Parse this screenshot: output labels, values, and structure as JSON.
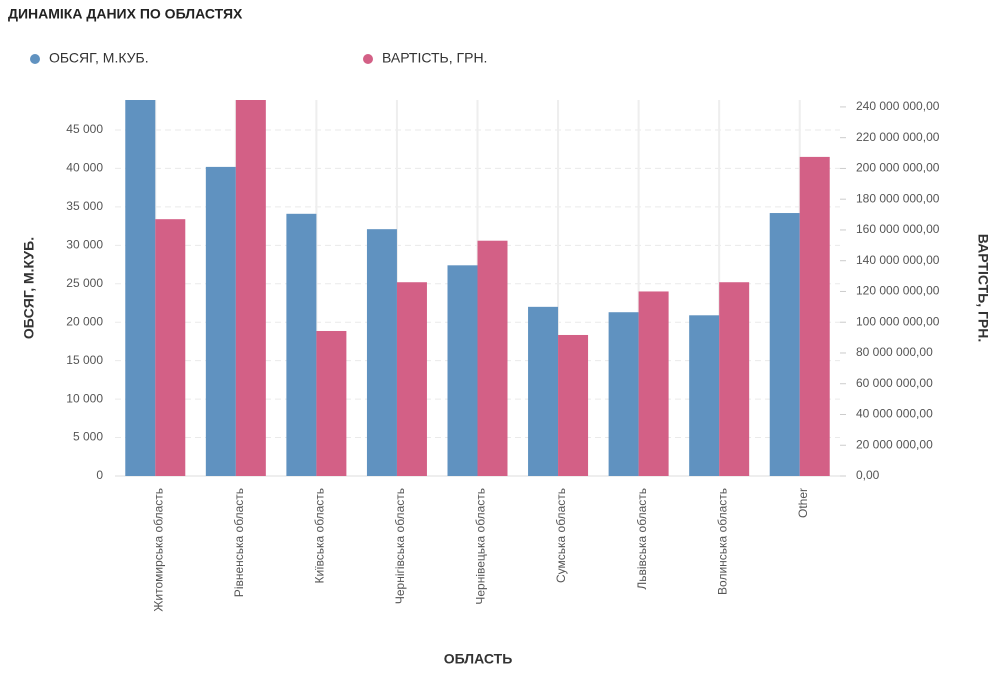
{
  "chart_data": {
    "type": "bar",
    "title": "ДИНАМІКА ДАНИХ ПО ОБЛАСТЯХ",
    "x_label": "ОБЛАСТЬ",
    "y_label": "ОБСЯГ, М.КУБ.",
    "y2_label": "ВАРТІСТЬ, ГРН.",
    "categories": [
      "Житомирська область",
      "Рівненська область",
      "Київська область",
      "Чернігівська область",
      "Чернівецька область",
      "Сумська область",
      "Львівська область",
      "Волинська область",
      "Other"
    ],
    "series": [
      {
        "name": "ОБСЯГ, М.КУБ.",
        "color": "#6092c0",
        "values": [
          49500,
          40200,
          34100,
          32100,
          27400,
          22000,
          21300,
          20900,
          34200
        ]
      },
      {
        "name": "ВАРТІСТЬ, ГРН.",
        "color": "#d36086",
        "axis": "y2",
        "values": [
          167000000,
          250000000,
          94300000,
          126000000,
          153000000,
          91700000,
          120000000,
          126000000,
          207500000
        ]
      }
    ],
    "ylim": [
      0,
      48900
    ],
    "yticks": [
      0,
      {
        "value": 5000,
        "label": "5 000"
      },
      {
        "value": 10000,
        "label": "10 000"
      },
      {
        "value": 15000,
        "label": "15 000"
      },
      {
        "value": 20000,
        "label": "20 000"
      },
      {
        "value": 25000,
        "label": "25 000"
      },
      {
        "value": 30000,
        "label": "30 000"
      },
      {
        "value": 35000,
        "label": "35 000"
      },
      {
        "value": 40000,
        "label": "40 000"
      },
      {
        "value": 45000,
        "label": "45 000"
      }
    ],
    "y2lim": [
      0,
      244500000
    ],
    "y2ticks": [
      {
        "value": 0,
        "label": "0,00"
      },
      {
        "value": 20000000,
        "label": "20 000 000,00"
      },
      {
        "value": 40000000,
        "label": "40 000 000,00"
      },
      {
        "value": 60000000,
        "label": "60 000 000,00"
      },
      {
        "value": 80000000,
        "label": "80 000 000,00"
      },
      {
        "value": 100000000,
        "label": "100 000 000,00"
      },
      {
        "value": 120000000,
        "label": "120 000 000,00"
      },
      {
        "value": 140000000,
        "label": "140 000 000,00"
      },
      {
        "value": 160000000,
        "label": "160 000 000,00"
      },
      {
        "value": 180000000,
        "label": "180 000 000,00"
      },
      {
        "value": 200000000,
        "label": "200 000 000,00"
      },
      {
        "value": 220000000,
        "label": "220 000 000,00"
      },
      {
        "value": 240000000,
        "label": "240 000 000,00"
      }
    ],
    "grid": true,
    "legend": "top"
  }
}
